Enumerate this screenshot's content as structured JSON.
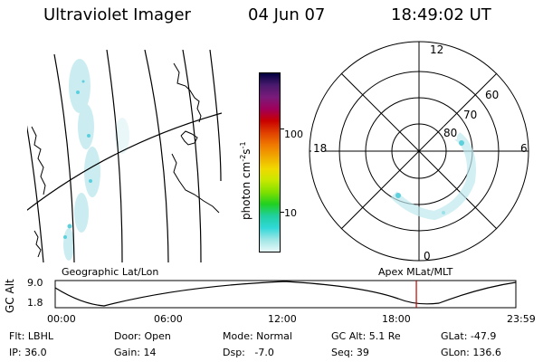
{
  "header": {
    "title": "Ultraviolet Imager",
    "date": "04 Jun 07",
    "time": "18:49:02 UT"
  },
  "colorbar": {
    "unit_main": "photon cm",
    "unit_sup1": "-2",
    "unit_mid": "s",
    "unit_sup2": "-1",
    "tick_100": "100",
    "tick_10": "10",
    "colors": [
      "#000040",
      "#4a1a6e",
      "#7a1a7a",
      "#a0005a",
      "#c80000",
      "#e04000",
      "#f07800",
      "#f0a800",
      "#f0d800",
      "#c8e800",
      "#80e000",
      "#20d020",
      "#20d0a0",
      "#30d8d8",
      "#9fe6e6",
      "#e8f8f8"
    ]
  },
  "polar": {
    "label_12": "12",
    "label_6": "6",
    "label_18": "18",
    "label_0": "0",
    "label_60": "60",
    "label_70": "70",
    "label_80": "80"
  },
  "timeline": {
    "axis_label": "GC Alt",
    "left_title": "Geographic Lat/Lon",
    "right_title": "Apex MLat/MLT",
    "y_top": "9.0",
    "y_bot": "1.8",
    "x_ticks": [
      "00:00",
      "06:00",
      "12:00",
      "18:00",
      "23:59"
    ],
    "marker_color": "#c00000",
    "marker_time_fraction": 0.784
  },
  "status": {
    "filter": "Flt: LBHL",
    "door": "Door: Open",
    "mode": "Mode: Normal",
    "gc_alt": "GC Alt: 5.1 Re",
    "glat": "GLat: -47.9",
    "ip": "IP: 36.0",
    "gain": "Gain: 14",
    "dsp": "Dsp:   -7.0",
    "seq": "Seq: 39",
    "glon": "GLon: 136.6"
  }
}
